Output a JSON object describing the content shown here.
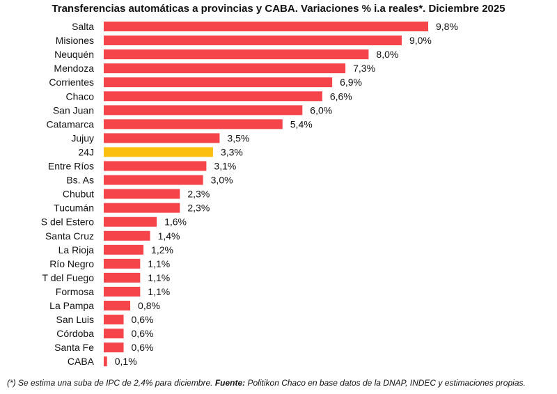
{
  "chart_data": {
    "type": "bar",
    "orientation": "horizontal",
    "title": "Transferencias automáticas a provincias y CABA. Variaciones % i.a reales*. Diciembre 2025",
    "categories": [
      "Salta",
      "Misiones",
      "Neuquén",
      "Mendoza",
      "Corrientes",
      "Chaco",
      "San Juan",
      "Catamarca",
      "Jujuy",
      "24J",
      "Entre Ríos",
      "Bs. As",
      "Chubut",
      "Tucumán",
      "S del Estero",
      "Santa Cruz",
      "La Rioja",
      "Río Negro",
      "T del Fuego",
      "Formosa",
      "La Pampa",
      "San Luis",
      "Córdoba",
      "Santa Fe",
      "CABA"
    ],
    "values": [
      9.8,
      9.0,
      8.0,
      7.3,
      6.9,
      6.6,
      6.0,
      5.4,
      3.5,
      3.3,
      3.1,
      3.0,
      2.3,
      2.3,
      1.6,
      1.4,
      1.2,
      1.1,
      1.1,
      1.1,
      0.8,
      0.6,
      0.6,
      0.6,
      0.1
    ],
    "value_labels": [
      "9,8%",
      "9,0%",
      "8,0%",
      "7,3%",
      "6,9%",
      "6,6%",
      "6,0%",
      "5,4%",
      "3,5%",
      "3,3%",
      "3,1%",
      "3,0%",
      "2,3%",
      "2,3%",
      "1,6%",
      "1,4%",
      "1,2%",
      "1,1%",
      "1,1%",
      "1,1%",
      "0,8%",
      "0,6%",
      "0,6%",
      "0,6%",
      "0,1%"
    ],
    "highlight_category": "24J",
    "xlim": [
      0,
      9.8
    ],
    "grid": false,
    "colors": {
      "bar": "#f5454b",
      "highlight": "#fbbf0f"
    }
  },
  "footnote": {
    "note": "(*) Se estima una suba de IPC de 2,4% para diciembre. ",
    "source_label": "Fuente:",
    "source_text": " Politikon Chaco en base datos de la DNAP, INDEC y estimaciones propias."
  }
}
